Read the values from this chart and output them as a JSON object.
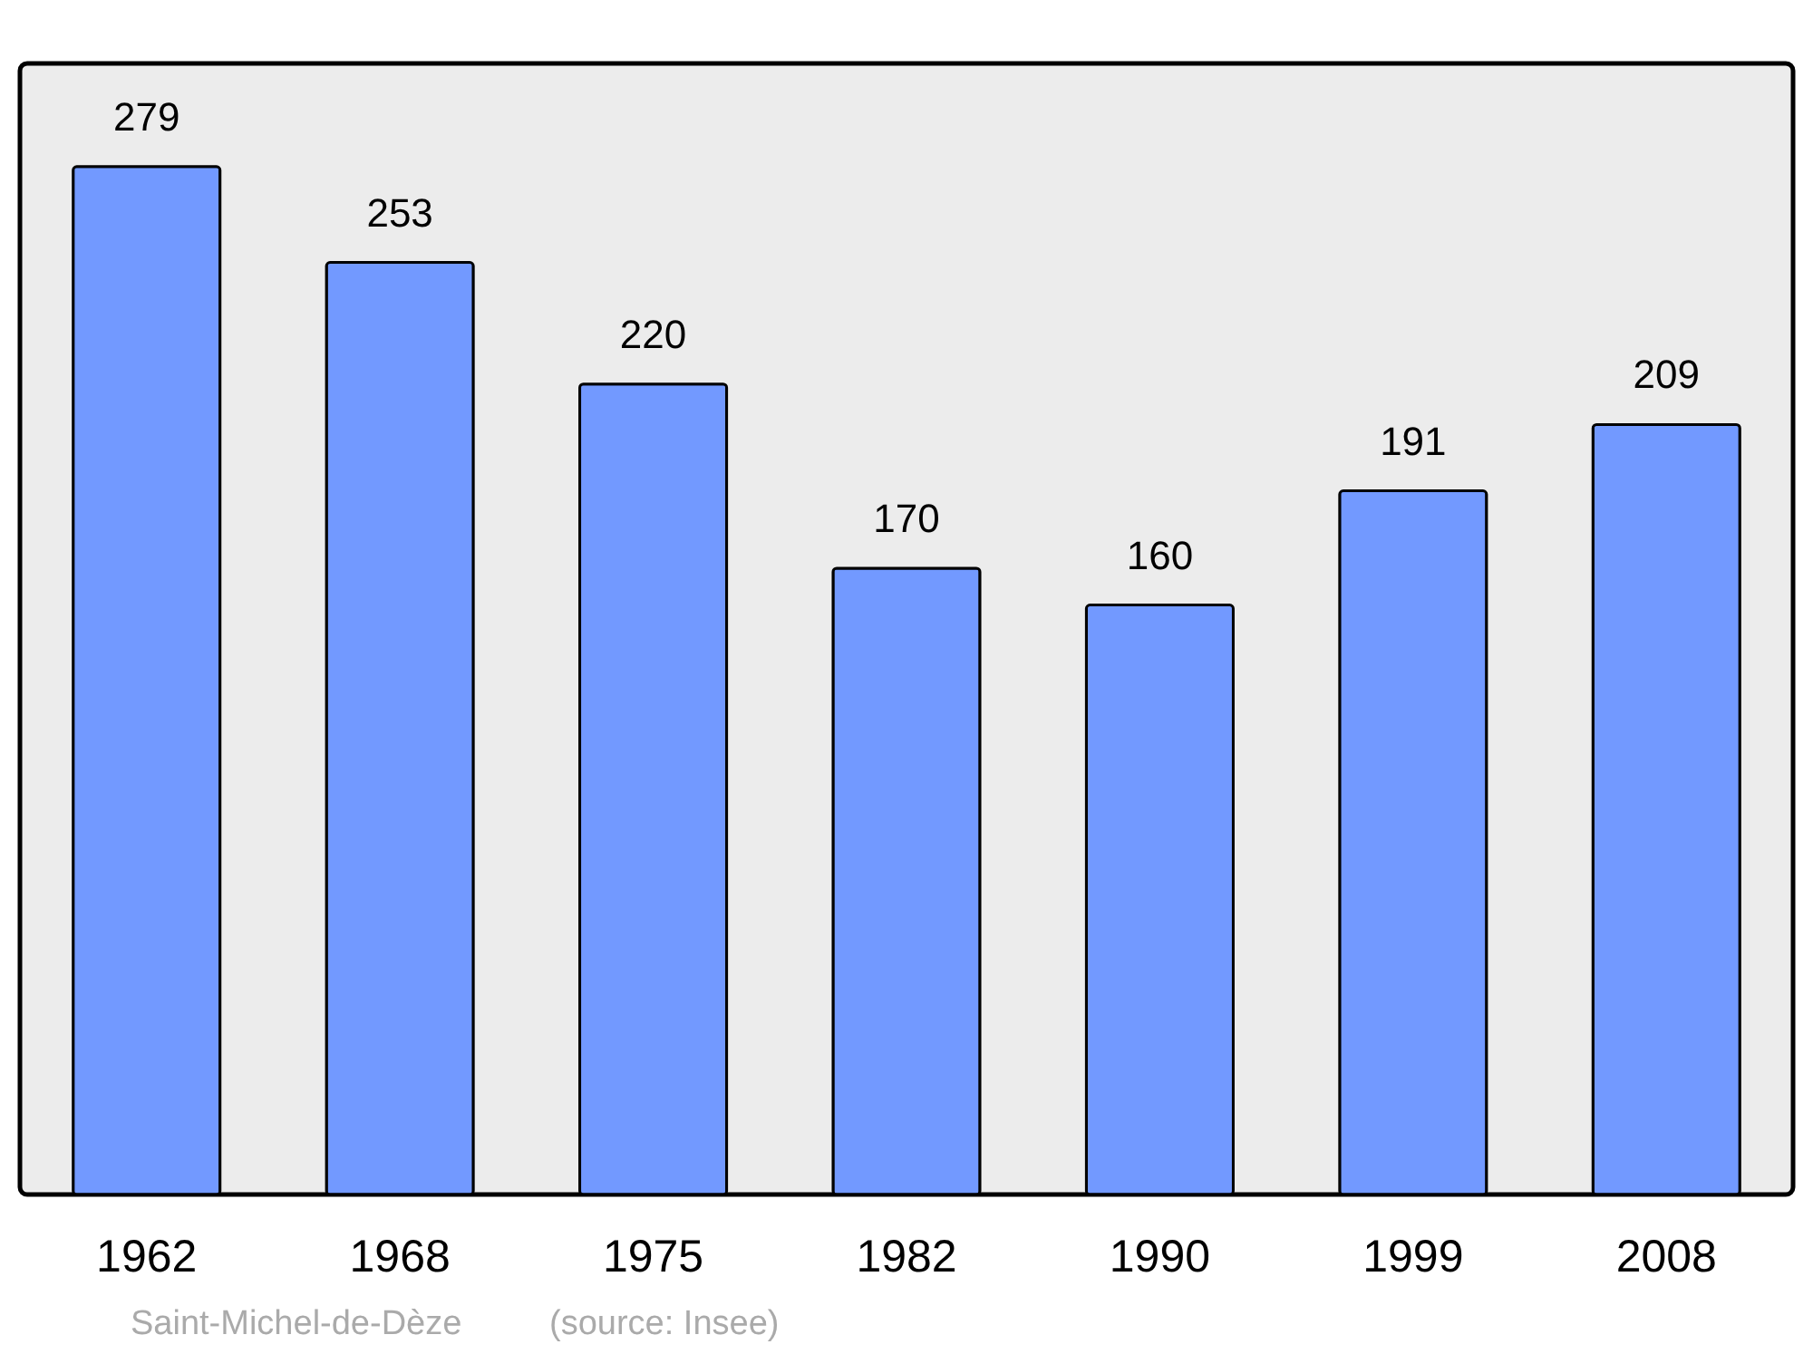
{
  "chart_data": {
    "type": "bar",
    "categories": [
      "1962",
      "1968",
      "1975",
      "1982",
      "1990",
      "1999",
      "2008"
    ],
    "values": [
      279,
      253,
      220,
      170,
      160,
      191,
      209
    ],
    "color": "#7299ff",
    "ylim": [
      0,
      307
    ],
    "data_labels": true,
    "annotations": [
      "Saint-Michel-de-Dèze",
      "(source: Insee)"
    ]
  }
}
